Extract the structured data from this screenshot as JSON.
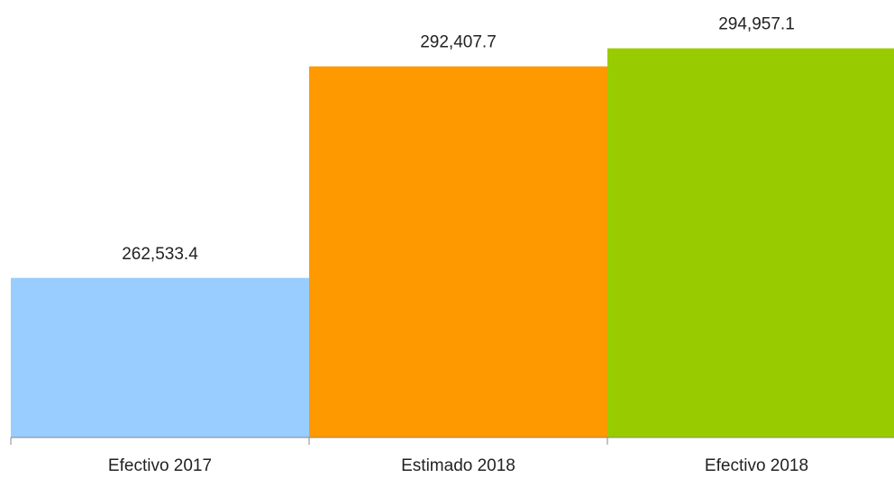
{
  "chart_data": {
    "type": "bar",
    "categories": [
      "Efectivo 2017",
      "Estimado 2018",
      "Efectivo 2018"
    ],
    "values": [
      262533.4,
      292407.7,
      294957.1
    ],
    "value_labels": [
      "262,533.4",
      "292,407.7",
      "294,957.1"
    ],
    "colors": [
      "#99ccff",
      "#ff9900",
      "#99cc00"
    ],
    "ylim": [
      240000,
      300000
    ],
    "grid": false
  }
}
